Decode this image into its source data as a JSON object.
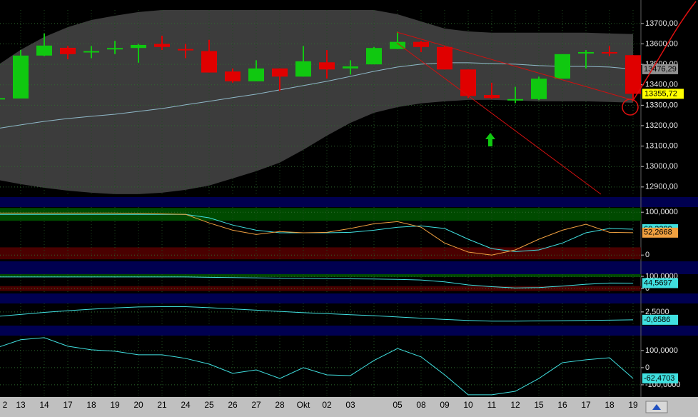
{
  "chart_data": [
    {
      "type": "candlestick",
      "categories": [
        "2",
        "13",
        "14",
        "17",
        "18",
        "19",
        "20",
        "21",
        "24",
        "25",
        "26",
        "27",
        "28",
        "Okt",
        "02",
        "03",
        null,
        "05",
        "08",
        "09",
        "10",
        "11",
        "12",
        "15",
        "16",
        "17",
        "18",
        "19"
      ],
      "open": [
        13330,
        13333,
        13543,
        13581,
        13560,
        13575,
        13580,
        13600,
        13575,
        13565,
        13465,
        13417,
        13480,
        13440,
        13510,
        13480,
        13500,
        13575,
        13610,
        13585,
        13475,
        13350,
        13325,
        13330,
        13430,
        13555,
        13560,
        13545
      ],
      "high": [
        13340,
        13571,
        13651,
        13590,
        13590,
        13615,
        13600,
        13640,
        13600,
        13620,
        13480,
        13520,
        13480,
        13590,
        13570,
        13520,
        13585,
        13660,
        13615,
        13590,
        13475,
        13410,
        13390,
        13440,
        13550,
        13570,
        13590,
        13545
      ],
      "low": [
        13325,
        13333,
        13540,
        13525,
        13530,
        13550,
        13508,
        13570,
        13530,
        13460,
        13410,
        13417,
        13370,
        13440,
        13430,
        13450,
        13500,
        13575,
        13560,
        13475,
        13335,
        13330,
        13310,
        13325,
        13430,
        13480,
        13540,
        13330
      ],
      "close": [
        13335,
        13543,
        13592,
        13550,
        13565,
        13580,
        13595,
        13585,
        13570,
        13460,
        13417,
        13480,
        13440,
        13515,
        13475,
        13490,
        13580,
        13610,
        13585,
        13475,
        13345,
        13335,
        13330,
        13430,
        13550,
        13560,
        13555,
        13355.72
      ],
      "close_label": "13355,72",
      "up_color": "#10c810",
      "down_color": "#e00000",
      "label_color": "#ffff00",
      "band": {
        "color": "#3c3c3c",
        "upper": [
          13494,
          13571,
          13634,
          13682,
          13717,
          13738,
          13756,
          13766,
          13766,
          13766,
          13766,
          13766,
          13766,
          13766,
          13766,
          13766,
          13766,
          13745,
          13710,
          13675,
          13661,
          13655,
          13655,
          13655,
          13655,
          13655,
          13651,
          13648
        ],
        "lower": [
          12935,
          12914,
          12896,
          12882,
          12872,
          12865,
          12865,
          12872,
          12886,
          12907,
          12942,
          12977,
          13019,
          13082,
          13151,
          13214,
          13263,
          13291,
          13309,
          13319,
          13326,
          13326,
          13323,
          13319,
          13319,
          13319,
          13316,
          13312
        ]
      },
      "series": [
        {
          "color": "#8fb8c8",
          "values": [
            13186,
            13204,
            13221,
            13235,
            13246,
            13256,
            13270,
            13284,
            13302,
            13319,
            13337,
            13354,
            13375,
            13396,
            13417,
            13441,
            13466,
            13487,
            13501,
            13508,
            13508,
            13504,
            13501,
            13494,
            13490,
            13490,
            13487,
            13476.29
          ],
          "last_label": "13476,29",
          "label_color": "#909090"
        }
      ],
      "ylim": [
        12861,
        13766
      ],
      "yticks": [
        {
          "value": 13700,
          "label": "13700,00"
        },
        {
          "value": 13600,
          "label": "13600,00"
        },
        {
          "value": 13500,
          "label": "13500,00"
        },
        {
          "value": 13400,
          "label": "13400,00"
        },
        {
          "value": 13300,
          "label": "13300,00"
        },
        {
          "value": 13200,
          "label": "13200,00"
        },
        {
          "value": 13100,
          "label": "13100,00"
        },
        {
          "value": 13000,
          "label": "13000,00"
        },
        {
          "value": 12900,
          "label": "12900,00"
        }
      ],
      "grid": true
    },
    {
      "type": "line",
      "zones": [
        {
          "from": 80,
          "to": 110,
          "color": "#004a00"
        },
        {
          "from": -10,
          "to": 18,
          "color": "#4a0000"
        }
      ],
      "series": [
        {
          "color": "#40e0e0",
          "values": [
            95,
            95,
            95,
            95,
            95,
            95,
            95,
            95,
            95,
            87,
            70,
            58,
            52,
            52,
            52,
            53,
            58,
            65,
            68,
            62,
            37,
            15,
            8,
            12,
            28,
            52,
            62,
            60.3389
          ],
          "last_label": "60,3389",
          "label_color": "#40e0e0"
        },
        {
          "color": "#f0a040",
          "values": [
            98,
            98,
            98,
            98,
            98,
            98,
            97,
            96,
            95,
            75,
            58,
            48,
            55,
            52,
            53,
            62,
            73,
            78,
            65,
            28,
            7,
            0,
            12,
            37,
            58,
            72,
            53,
            52.2668
          ],
          "last_label": "52,2668",
          "label_color": "#f0a040"
        }
      ],
      "ylim": [
        -13,
        112
      ],
      "yticks": [
        {
          "value": 100,
          "label": "100,0000"
        },
        0
      ],
      "grid": true
    },
    {
      "type": "line",
      "zones": [
        {
          "from": 95,
          "to": 118,
          "color": "#004a00"
        },
        {
          "from": -20,
          "to": 20,
          "color": "#4a0000"
        }
      ],
      "series": [
        {
          "color": "#40e0e0",
          "values": [
            95,
            95,
            95,
            95,
            95,
            95,
            95,
            95,
            95,
            92,
            90,
            88,
            86,
            85,
            82,
            80,
            78,
            75,
            70,
            55,
            30,
            15,
            5,
            8,
            20,
            35,
            45,
            44.5697
          ],
          "last_label": "44,5697",
          "label_color": "#40e0e0"
        }
      ],
      "ylim": [
        -35,
        118
      ],
      "yticks": [
        {
          "value": 100,
          "label": "100,0000"
        },
        0
      ],
      "grid": true
    },
    {
      "type": "line",
      "series": [
        {
          "color": "#40e0e0",
          "values": [
            0.7,
            1.5,
            2.3,
            3,
            3.6,
            4.1,
            4.5,
            4.6,
            4.6,
            4.2,
            3.7,
            3.2,
            2.7,
            2.2,
            1.8,
            1.4,
            1,
            0.5,
            0,
            -0.5,
            -0.9,
            -1.2,
            -1.2,
            -1.1,
            -1,
            -0.9,
            -0.8,
            -0.6586
          ],
          "last_label": "-0,6586",
          "label_color": "#40e0e0"
        }
      ],
      "ylim": [
        -2.7,
        5.9
      ],
      "yticks": [
        {
          "value": 2.5,
          "label": "2,5000"
        }
      ],
      "grid": true
    },
    {
      "type": "line",
      "series": [
        {
          "color": "#40e0e0",
          "values": [
            117,
            163,
            175,
            125,
            104,
            96,
            75,
            75,
            54,
            21,
            -33,
            -13,
            -63,
            0,
            -42,
            -46,
            42,
            112,
            63,
            -42,
            -158,
            -158,
            -138,
            -63,
            29,
            46,
            58,
            -62.4703
          ],
          "last_label": "-62,4703",
          "label_color": "#40e0e0"
        }
      ],
      "ylim": [
        -167,
        187
      ],
      "yticks": [
        {
          "value": 100,
          "label": "100,0000"
        },
        0,
        {
          "value": -100,
          "label": "-100,0000"
        }
      ],
      "grid": true
    }
  ]
}
